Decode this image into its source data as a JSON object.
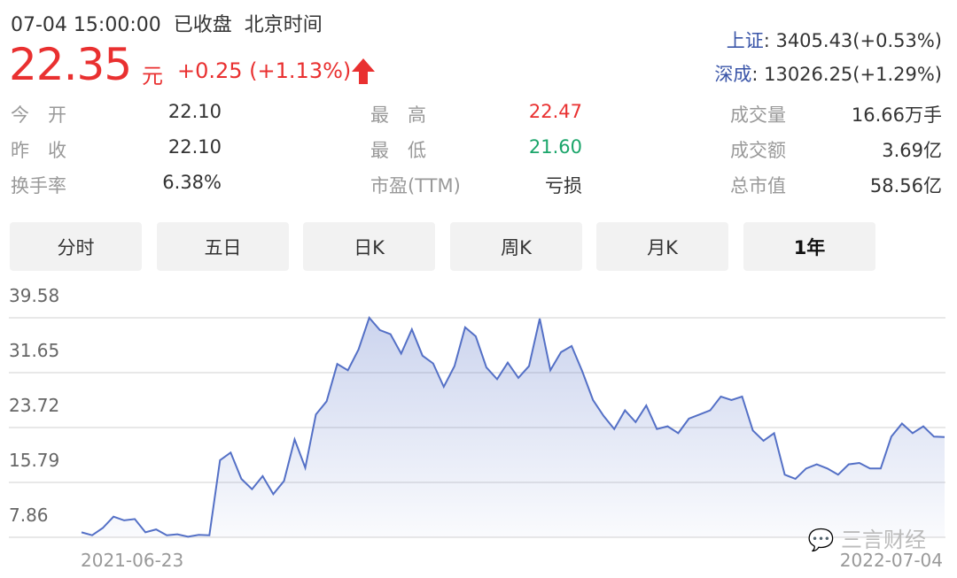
{
  "header": {
    "datetime": "07-04 15:00:00",
    "status": "已收盘",
    "timezone": "北京时间",
    "price": "22.35",
    "unit": "元",
    "change": "+0.25 (+1.13%)",
    "trend_icon": "arrow-up-icon",
    "up_color": "#e93030",
    "down_color": "#1aa56a"
  },
  "indices": [
    {
      "label": "上证",
      "value": ": 3405.43(+0.53%)"
    },
    {
      "label": "深成",
      "value": ": 13026.25(+1.29%)"
    }
  ],
  "stats": [
    {
      "label": "今　开",
      "value": "22.10",
      "color": "#333333"
    },
    {
      "label": "最　高",
      "value": "22.47",
      "color": "#e93030"
    },
    {
      "label": "成交量",
      "value": "16.66万手",
      "color": "#333333"
    },
    {
      "label": "昨　收",
      "value": "22.10",
      "color": "#333333"
    },
    {
      "label": "最　低",
      "value": "21.60",
      "color": "#1aa56a"
    },
    {
      "label": "成交额",
      "value": "3.69亿",
      "color": "#333333"
    },
    {
      "label": "换手率",
      "value": "6.38%",
      "color": "#333333"
    },
    {
      "label": "市盈(TTM)",
      "value": "亏损",
      "color": "#333333"
    },
    {
      "label": "总市值",
      "value": "58.56亿",
      "color": "#333333"
    }
  ],
  "tabs": [
    {
      "label": "分时"
    },
    {
      "label": "五日"
    },
    {
      "label": "日K"
    },
    {
      "label": "周K"
    },
    {
      "label": "月K"
    },
    {
      "label": "1年",
      "selected": true
    }
  ],
  "watermark": "三言财经",
  "chart_data": {
    "type": "area",
    "y_ticks": [
      "39.58",
      "31.65",
      "23.72",
      "15.79",
      "7.86"
    ],
    "ylim": [
      7.86,
      39.58
    ],
    "x_labels": [
      "2021-06-23",
      "2022-07-04"
    ],
    "grid": true,
    "line_color": "#5470c6",
    "values": [
      8.58,
      8.16,
      9.2,
      10.84,
      10.3,
      10.5,
      8.58,
      9.0,
      8.16,
      8.3,
      7.94,
      8.2,
      8.16,
      19.0,
      20.1,
      16.3,
      14.8,
      16.7,
      14.1,
      16.0,
      22.0,
      17.9,
      25.6,
      27.5,
      32.9,
      32.0,
      35.0,
      39.58,
      37.8,
      37.2,
      34.4,
      37.9,
      34.1,
      32.98,
      29.6,
      32.6,
      38.2,
      36.9,
      32.4,
      30.7,
      33.1,
      30.9,
      32.6,
      39.45,
      32.0,
      34.6,
      35.5,
      31.8,
      27.7,
      25.4,
      23.5,
      26.2,
      24.5,
      26.9,
      23.5,
      23.9,
      22.9,
      25.0,
      25.6,
      26.2,
      28.2,
      27.7,
      28.2,
      23.3,
      21.8,
      22.9,
      16.9,
      16.3,
      17.8,
      18.4,
      17.8,
      16.9,
      18.4,
      18.6,
      17.8,
      17.8,
      22.4,
      24.3,
      22.9,
      23.9,
      22.4,
      22.35
    ]
  }
}
